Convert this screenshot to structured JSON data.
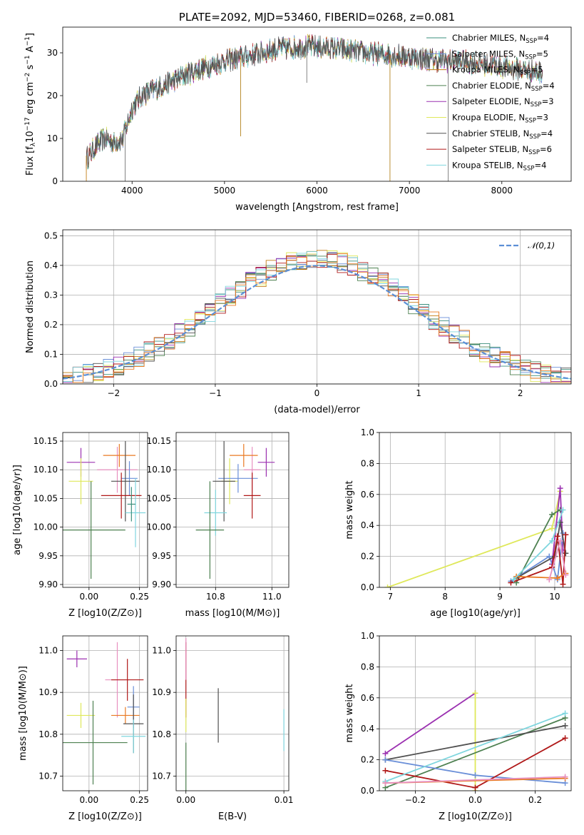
{
  "colors": {
    "Chabrier MILES": "#3b8f7c",
    "Salpeter MILES": "#6a8fd8",
    "Kroupa MILES": "#c27c14",
    "Chabrier ELODIE": "#4d8050",
    "Salpeter ELODIE": "#9b30b0",
    "Kroupa ELODIE": "#dfe85a",
    "Chabrier STELIB": "#505050",
    "Salpeter STELIB": "#b01818",
    "Kroupa STELIB": "#7fd6de",
    "pink": "#e890c0",
    "orange": "#e97a22",
    "normal": "#5b8fd6"
  },
  "chart_data": [
    {
      "id": "spectrum",
      "type": "line",
      "title": "PLATE=2092, MJD=53460, FIBERID=0268, z=0.081",
      "xlabel": "wavelength [Angstrom, rest frame]",
      "ylabel": "Flux [f_λ 10^-17 erg cm^-2 s^-1 A^-1]",
      "xlim": [
        3250,
        8750
      ],
      "ylim": [
        0,
        36
      ],
      "xticks": [
        "4000",
        "5000",
        "6000",
        "7000",
        "8000"
      ],
      "yticks": [
        "0",
        "10",
        "20",
        "30"
      ],
      "grid": false,
      "legend_position": "upper-right",
      "legend": [
        {
          "label": "Chabrier MILES, N",
          "sub": "SSP",
          "suffix": "=4"
        },
        {
          "label": "Salpeter MILES, N",
          "sub": "SSP",
          "suffix": "=5"
        },
        {
          "label": "Kroupa MILES, N",
          "sub": "SSP",
          "suffix": "=5"
        },
        {
          "label": "Chabrier ELODIE, N",
          "sub": "SSP",
          "suffix": "=4"
        },
        {
          "label": "Salpeter ELODIE, N",
          "sub": "SSP",
          "suffix": "=3"
        },
        {
          "label": "Kroupa ELODIE, N",
          "sub": "SSP",
          "suffix": "=3"
        },
        {
          "label": "Chabrier STELIB, N",
          "sub": "SSP",
          "suffix": "=4"
        },
        {
          "label": "Salpeter STELIB, N",
          "sub": "SSP",
          "suffix": "=6"
        },
        {
          "label": "Kroupa STELIB, N",
          "sub": "SSP",
          "suffix": "=4"
        }
      ],
      "continuum": {
        "x": [
          3500,
          3600,
          3700,
          3800,
          3900,
          4000,
          4100,
          4200,
          4300,
          4500,
          4700,
          5000,
          5300,
          5600,
          5900,
          6200,
          6500,
          6800,
          7000,
          7200,
          7500,
          7800,
          8100,
          8400
        ],
        "y": [
          5,
          8,
          10,
          9,
          10,
          17,
          20,
          21,
          22,
          24,
          26,
          28,
          29.5,
          31,
          31.5,
          31,
          30,
          29.5,
          29,
          28.5,
          28,
          27.5,
          26.5,
          25.5
        ]
      },
      "dips": [
        {
          "x": 3925,
          "y": 0
        },
        {
          "x": 5175,
          "y": 10.5
        },
        {
          "x": 5890,
          "y": 23
        },
        {
          "x": 6790,
          "y": 0
        },
        {
          "x": 7420,
          "y": 0
        }
      ]
    },
    {
      "id": "residuals",
      "type": "histogram",
      "xlabel": "(data-model)/error",
      "ylabel": "Normed distribution",
      "xlim": [
        -2.5,
        2.5
      ],
      "ylim": [
        0,
        0.52
      ],
      "xticks": [
        "−2",
        "−1",
        "0",
        "1",
        "2"
      ],
      "yticks": [
        "0.0",
        "0.1",
        "0.2",
        "0.3",
        "0.4",
        "0.5"
      ],
      "grid": true,
      "legend_position": "upper-right",
      "legend": [
        {
          "label": "N(0,1)",
          "style": "dashed"
        }
      ],
      "bin_width": 0.1
    },
    {
      "id": "age_vs_Z",
      "type": "scatter",
      "xlabel": "Z [log10(Z/Z⊙)]",
      "ylabel": "age [log10(age/yr)]",
      "xlim": [
        -0.13,
        0.29
      ],
      "ylim": [
        9.895,
        10.165
      ],
      "xticks": [
        "0.00",
        "0.25"
      ],
      "yticks": [
        "9.90",
        "9.95",
        "10.00",
        "10.05",
        "10.10",
        "10.15"
      ],
      "grid": true,
      "points": [
        {
          "c": "Salpeter ELODIE",
          "x": -0.04,
          "y": 10.113,
          "ex": 0.07,
          "ey": 0.025
        },
        {
          "c": "Kroupa ELODIE",
          "x": -0.04,
          "y": 10.08,
          "ex": 0.06,
          "ey": 0.04
        },
        {
          "c": "pink",
          "x": 0.14,
          "y": 10.1,
          "ex": 0.1,
          "ey": 0.04
        },
        {
          "c": "orange",
          "x": 0.15,
          "y": 10.125,
          "ex": 0.08,
          "ey": 0.02
        },
        {
          "c": "Salpeter MILES",
          "x": 0.2,
          "y": 10.085,
          "ex": 0.04,
          "ey": 0.03
        },
        {
          "c": "Chabrier STELIB",
          "x": 0.18,
          "y": 10.08,
          "ex": 0.07,
          "ey": 0.07
        },
        {
          "c": "Salpeter STELIB",
          "x": 0.16,
          "y": 10.055,
          "ex": 0.1,
          "ey": 0.04
        },
        {
          "c": "Kroupa STELIB",
          "x": 0.23,
          "y": 10.025,
          "ex": 0.05,
          "ey": 0.06
        },
        {
          "c": "Chabrier ELODIE",
          "x": 0.01,
          "y": 9.995,
          "ex": 0.17,
          "ey": 0.085
        },
        {
          "c": "Chabrier MILES",
          "x": 0.21,
          "y": 10.04,
          "ex": 0.02,
          "ey": 0.03
        }
      ]
    },
    {
      "id": "age_vs_mass",
      "type": "scatter",
      "xlabel": "mass [log10(M/M⊙)]",
      "ylabel": "",
      "xlim": [
        10.66,
        11.06
      ],
      "ylim": [
        9.895,
        10.165
      ],
      "xticks": [
        "10.8",
        "11.0"
      ],
      "yticks": [
        "9.90",
        "9.95",
        "10.00",
        "10.05",
        "10.10",
        "10.15"
      ],
      "grid": true,
      "points": [
        {
          "c": "Salpeter ELODIE",
          "x": 10.98,
          "y": 10.113,
          "ex": 0.03,
          "ey": 0.025
        },
        {
          "c": "Kroupa ELODIE",
          "x": 10.85,
          "y": 10.08,
          "ex": 0.03,
          "ey": 0.04
        },
        {
          "c": "pink",
          "x": 10.93,
          "y": 10.1,
          "ex": 0.03,
          "ey": 0.04
        },
        {
          "c": "orange",
          "x": 10.9,
          "y": 10.125,
          "ex": 0.05,
          "ey": 0.02
        },
        {
          "c": "Salpeter MILES",
          "x": 10.88,
          "y": 10.085,
          "ex": 0.07,
          "ey": 0.025
        },
        {
          "c": "Chabrier STELIB",
          "x": 10.83,
          "y": 10.08,
          "ex": 0.04,
          "ey": 0.07
        },
        {
          "c": "Salpeter STELIB",
          "x": 10.93,
          "y": 10.055,
          "ex": 0.03,
          "ey": 0.04
        },
        {
          "c": "Kroupa STELIB",
          "x": 10.8,
          "y": 10.025,
          "ex": 0.04,
          "ey": 0.04
        },
        {
          "c": "Chabrier ELODIE",
          "x": 10.78,
          "y": 9.995,
          "ex": 0.05,
          "ey": 0.085
        }
      ]
    },
    {
      "id": "weight_vs_age",
      "type": "line",
      "xlabel": "age [log10(age/yr)]",
      "ylabel": "mass weight",
      "xlim": [
        6.8,
        10.3
      ],
      "ylim": [
        0,
        1
      ],
      "xticks": [
        "7",
        "8",
        "9",
        "10"
      ],
      "yticks": [
        "0.0",
        "0.2",
        "0.4",
        "0.6",
        "0.8",
        "1.0"
      ],
      "grid": true,
      "series": [
        {
          "c": "Kroupa ELODIE",
          "x": [
            6.95,
            9.95,
            10.1
          ],
          "y": [
            0.0,
            0.38,
            0.62
          ]
        },
        {
          "c": "Salpeter ELODIE",
          "x": [
            9.95,
            10.1,
            10.15
          ],
          "y": [
            0.15,
            0.64,
            0.24
          ]
        },
        {
          "c": "Chabrier ELODIE",
          "x": [
            9.3,
            9.95,
            10.1
          ],
          "y": [
            0.03,
            0.47,
            0.5
          ]
        },
        {
          "c": "Salpeter MILES",
          "x": [
            9.2,
            9.9,
            10.05,
            10.15
          ],
          "y": [
            0.04,
            0.2,
            0.05,
            0.35
          ]
        },
        {
          "c": "Chabrier STELIB",
          "x": [
            9.3,
            10.0,
            10.1,
            10.2
          ],
          "y": [
            0.06,
            0.2,
            0.42,
            0.22
          ]
        },
        {
          "c": "Salpeter STELIB",
          "x": [
            9.2,
            9.95,
            10.05,
            10.15,
            10.2
          ],
          "y": [
            0.03,
            0.13,
            0.33,
            0.02,
            0.34
          ]
        },
        {
          "c": "orange",
          "x": [
            9.3,
            10.05,
            10.2
          ],
          "y": [
            0.07,
            0.06,
            0.09
          ]
        },
        {
          "c": "Kroupa STELIB",
          "x": [
            9.25,
            9.95,
            10.15
          ],
          "y": [
            0.05,
            0.3,
            0.5
          ]
        },
        {
          "c": "pink",
          "x": [
            9.9,
            10.1,
            10.2
          ],
          "y": [
            0.05,
            0.3,
            0.08
          ]
        }
      ]
    },
    {
      "id": "mass_vs_Z",
      "type": "scatter",
      "xlabel": "Z [log10(Z/Z⊙)]",
      "ylabel": "mass [log10(M/M⊙)]",
      "xlim": [
        -0.13,
        0.29
      ],
      "ylim": [
        10.665,
        11.035
      ],
      "xticks": [
        "0.00",
        "0.25"
      ],
      "yticks": [
        "10.7",
        "10.8",
        "10.9",
        "11.0"
      ],
      "grid": true,
      "points": [
        {
          "c": "Salpeter ELODIE",
          "x": -0.06,
          "y": 10.98,
          "ex": 0.05,
          "ey": 0.02
        },
        {
          "c": "Kroupa ELODIE",
          "x": -0.04,
          "y": 10.845,
          "ex": 0.07,
          "ey": 0.03
        },
        {
          "c": "pink",
          "x": 0.14,
          "y": 10.93,
          "ex": 0.06,
          "ey": 0.09
        },
        {
          "c": "Salpeter STELIB",
          "x": 0.19,
          "y": 10.93,
          "ex": 0.08,
          "ey": 0.05
        },
        {
          "c": "Salpeter MILES",
          "x": 0.22,
          "y": 10.865,
          "ex": 0.03,
          "ey": 0.05
        },
        {
          "c": "orange",
          "x": 0.18,
          "y": 10.845,
          "ex": 0.07,
          "ey": 0.02
        },
        {
          "c": "Chabrier STELIB",
          "x": 0.22,
          "y": 10.825,
          "ex": 0.05,
          "ey": 0.07
        },
        {
          "c": "Kroupa STELIB",
          "x": 0.22,
          "y": 10.795,
          "ex": 0.06,
          "ey": 0.04
        },
        {
          "c": "Chabrier ELODIE",
          "x": 0.02,
          "y": 10.78,
          "ex": 0.17,
          "ey": 0.1
        }
      ]
    },
    {
      "id": "mass_vs_ebv",
      "type": "scatter",
      "xlabel": "E(B-V)",
      "ylabel": "",
      "xlim": [
        -0.001,
        0.0105
      ],
      "ylim": [
        10.665,
        11.035
      ],
      "xticks": [
        "0.00",
        "0.01"
      ],
      "yticks": [
        "10.7",
        "10.8",
        "10.9",
        "11.0"
      ],
      "grid": true,
      "points": [
        {
          "c": "Salpeter STELIB",
          "x": 0.0,
          "y": 10.93,
          "ex": 0,
          "ey": 0.09
        },
        {
          "c": "pink",
          "x": 0.0,
          "y": 10.98,
          "ex": 0,
          "ey": 0.05
        },
        {
          "c": "Kroupa ELODIE",
          "x": 0.0,
          "y": 10.845,
          "ex": 0,
          "ey": 0.04
        },
        {
          "c": "Chabrier ELODIE",
          "x": 0.0,
          "y": 10.72,
          "ex": 0,
          "ey": 0.06
        },
        {
          "c": "Chabrier STELIB",
          "x": 0.0033,
          "y": 10.845,
          "ex": 0,
          "ey": 0.065
        },
        {
          "c": "Kroupa STELIB",
          "x": 0.01,
          "y": 10.81,
          "ex": 0,
          "ey": 0.05
        }
      ]
    },
    {
      "id": "weight_vs_Z",
      "type": "line",
      "xlabel": "Z [log10(Z/Z⊙)]",
      "ylabel": "mass weight",
      "xlim": [
        -0.32,
        0.32
      ],
      "ylim": [
        0,
        1
      ],
      "xticks": [
        "−0.2",
        "0.0",
        "0.2"
      ],
      "yticks": [
        "0.0",
        "0.2",
        "0.4",
        "0.6",
        "0.8",
        "1.0"
      ],
      "grid": true,
      "series": [
        {
          "c": "Salpeter ELODIE",
          "x": [
            -0.3,
            0.0
          ],
          "y": [
            0.24,
            0.63
          ]
        },
        {
          "c": "Kroupa ELODIE",
          "x": [
            0.0,
            0.0
          ],
          "y": [
            0.0,
            0.63
          ]
        },
        {
          "c": "Chabrier ELODIE",
          "x": [
            -0.3,
            0.3
          ],
          "y": [
            0.02,
            0.47
          ]
        },
        {
          "c": "Chabrier STELIB",
          "x": [
            -0.3,
            0.3
          ],
          "y": [
            0.2,
            0.42
          ]
        },
        {
          "c": "Salpeter MILES",
          "x": [
            -0.3,
            0.0,
            0.3
          ],
          "y": [
            0.2,
            0.1,
            0.05
          ]
        },
        {
          "c": "Salpeter STELIB",
          "x": [
            -0.3,
            0.0,
            0.3
          ],
          "y": [
            0.13,
            0.02,
            0.34
          ]
        },
        {
          "c": "orange",
          "x": [
            -0.3,
            0.3
          ],
          "y": [
            0.05,
            0.08
          ]
        },
        {
          "c": "Kroupa STELIB",
          "x": [
            -0.3,
            0.3
          ],
          "y": [
            0.06,
            0.5
          ]
        },
        {
          "c": "pink",
          "x": [
            -0.3,
            0.3
          ],
          "y": [
            0.05,
            0.09
          ]
        }
      ]
    }
  ]
}
